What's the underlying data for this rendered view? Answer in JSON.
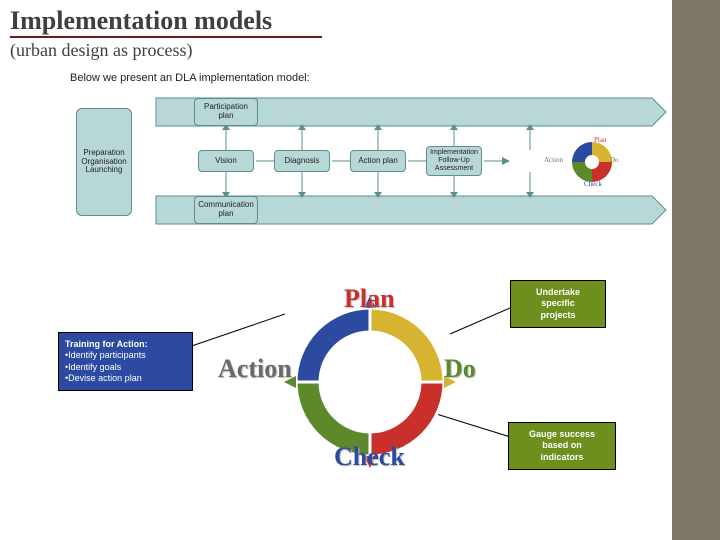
{
  "header": {
    "title": "Implementation models",
    "subtitle": "(urban design as process)"
  },
  "intro": "Below we present an DLA implementation model:",
  "flowchart": {
    "start": {
      "text": "Preparation\nOrganisation\nLaunching",
      "bg": "#b7d8d6"
    },
    "top_plan": "Participation\nplan",
    "bot_plan": "Communication\nplan",
    "steps": [
      "Vision",
      "Diagnosis",
      "Action plan",
      "Implementation\nFollow-Up\nAssessment"
    ],
    "band_color": "#b7d8d6"
  },
  "pdca": {
    "quadrants": [
      {
        "name": "Plan",
        "color": "#d6b430",
        "label_color": "#c9302c"
      },
      {
        "name": "Do",
        "color": "#c9302c",
        "label_color": "#5c8a2a"
      },
      {
        "name": "Check",
        "color": "#5c8a2a",
        "label_color": "#2b4aa0"
      },
      {
        "name": "Action",
        "color": "#2b4aa0",
        "label_color": "#6a6a6a"
      }
    ],
    "center_color": "#ffffff",
    "gap_color": "#ffffff"
  },
  "pdca_mini_labels": {
    "plan": "Plan",
    "do": "Do",
    "check": "Check",
    "action": "Action"
  },
  "callouts": {
    "training": {
      "title": "Training for Action:",
      "items": [
        "Identify participants",
        "Identify goals",
        "Devise action plan"
      ],
      "bg": "#2b4aa0"
    },
    "undertake": {
      "text": "Undertake\nspecific\nprojects",
      "bg": "#6d8f1e"
    },
    "gauge": {
      "text": "Gauge success\nbased on\nindicators",
      "bg": "#6d8f1e"
    }
  },
  "colors": {
    "side_bar": "#7c7865",
    "title_underline": "#6b1c1c",
    "flow_fill": "#b7d8d6",
    "flow_stroke": "#5a8f8d"
  }
}
